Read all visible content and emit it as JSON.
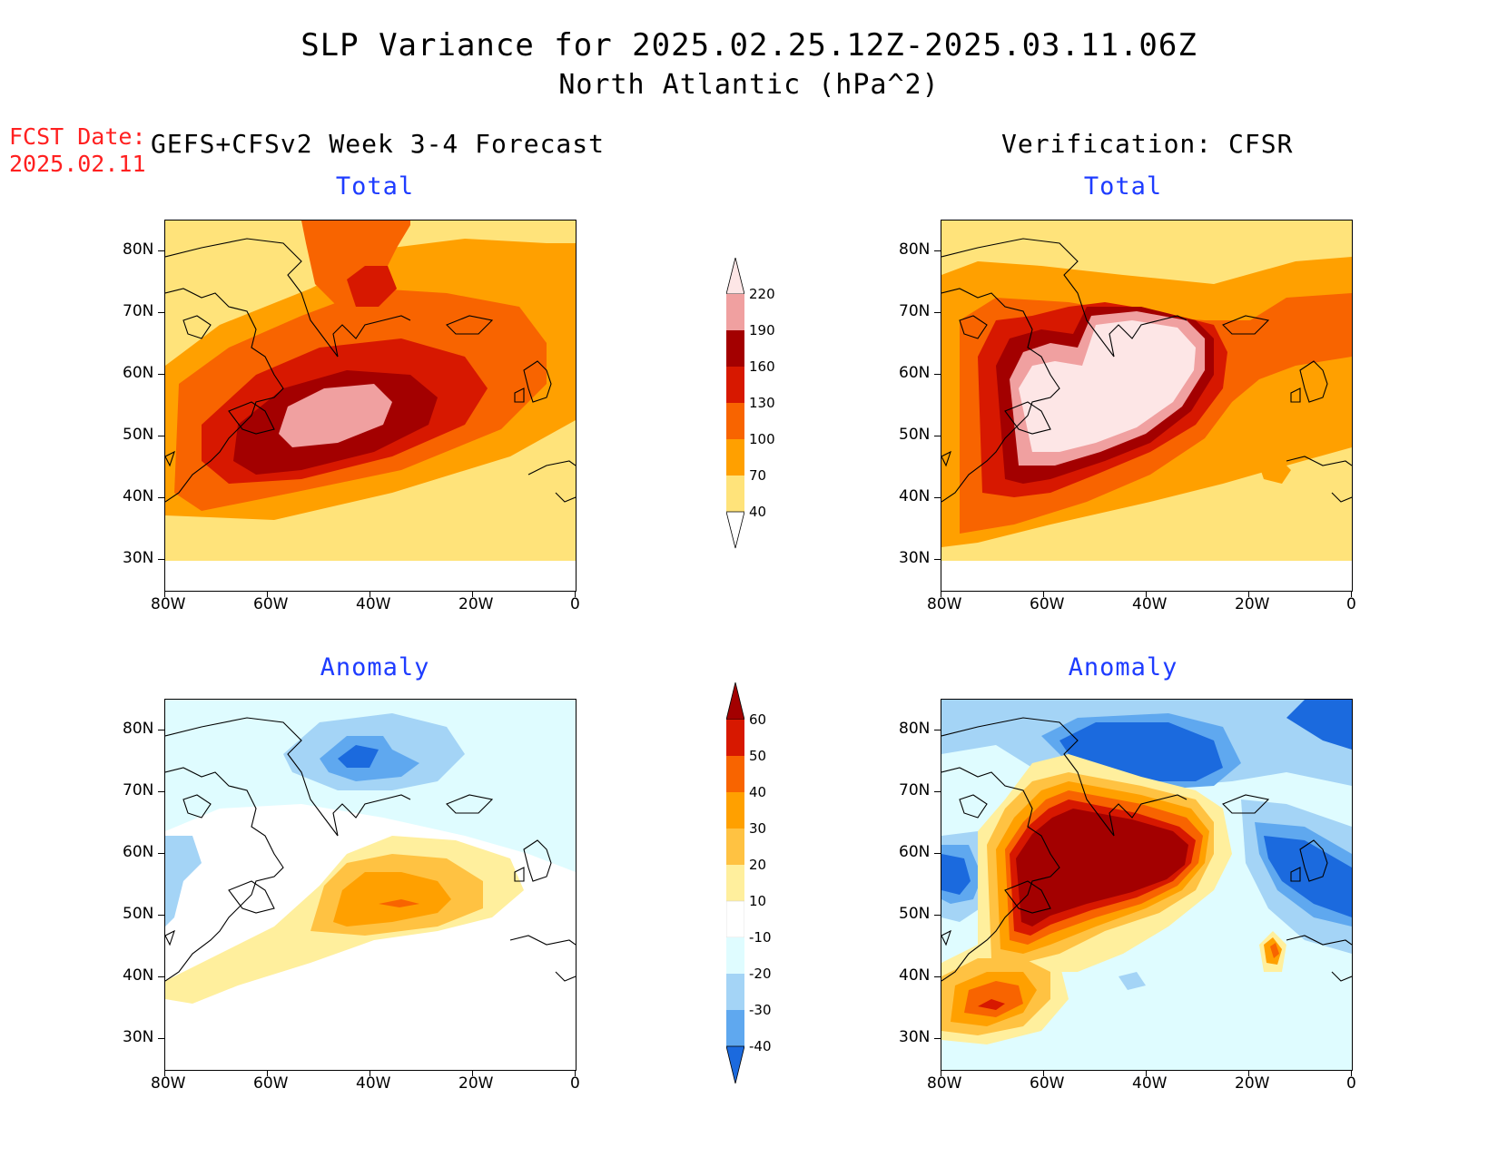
{
  "title": {
    "line1": "SLP Variance for 2025.02.25.12Z-2025.03.11.06Z",
    "line2": "North Atlantic (hPa^2)"
  },
  "fcst": {
    "label": "FCST Date:",
    "date": "2025.02.11"
  },
  "headers": {
    "left": "GEFS+CFSv2 Week 3-4 Forecast",
    "right": "Verification: CFSR"
  },
  "panels": {
    "top_left_title": "Total",
    "top_right_title": "Total",
    "bottom_left_title": "Anomaly",
    "bottom_right_title": "Anomaly"
  },
  "axes": {
    "lat_labels": [
      "80N",
      "70N",
      "60N",
      "50N",
      "40N",
      "30N"
    ],
    "lon_labels": [
      "80W",
      "60W",
      "40W",
      "20W",
      "0"
    ]
  },
  "colorbar_total": {
    "levels": [
      "220",
      "190",
      "160",
      "130",
      "100",
      "70",
      "40"
    ],
    "colors": [
      "#fde6e6",
      "#f0a0a0",
      "#a30000",
      "#d71800",
      "#f86400",
      "#ffa000",
      "#ffe37a"
    ]
  },
  "colorbar_anomaly": {
    "levels": [
      "60",
      "50",
      "40",
      "30",
      "20",
      "10",
      "-10",
      "-20",
      "-30",
      "-40"
    ],
    "colors": [
      "#a30000",
      "#d71800",
      "#f86400",
      "#ffa000",
      "#ffc242",
      "#ffef9d",
      "#ffffff",
      "#dffcff",
      "#a4d4f6",
      "#5fa8ef",
      "#1b6ade"
    ]
  }
}
